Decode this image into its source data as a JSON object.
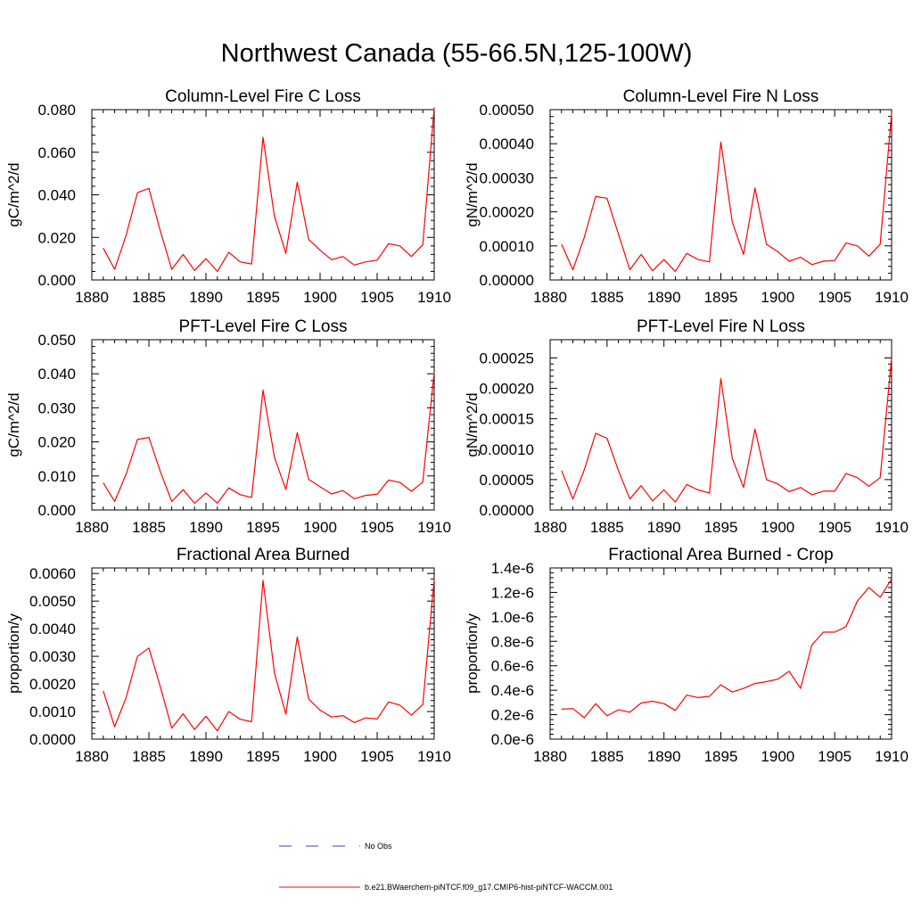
{
  "main_title": "Northwest Canada (55-66.5N,125-100W)",
  "colors": {
    "model_line": "#ff0000",
    "obs_line": "#3344aa",
    "axis": "#000000"
  },
  "legend": {
    "entries": [
      {
        "label": "No Obs",
        "style": "dashed",
        "color": "#3344aa"
      },
      {
        "label": "b.e21.BWaerchem-piNTCF.f09_g17.CMIP6-hist-piNTCF-WACCM.001",
        "style": "solid",
        "color": "#ff0000"
      }
    ]
  },
  "chart_data": [
    {
      "type": "line",
      "title": "Column-Level Fire C Loss",
      "ylabel": "gC/m^2/d",
      "xlim": [
        1880,
        1910
      ],
      "ylim": [
        0,
        0.08
      ],
      "xticks": [
        1880,
        1885,
        1890,
        1895,
        1900,
        1905,
        1910
      ],
      "yticks": [
        0,
        0.02,
        0.04,
        0.06,
        0.08
      ],
      "ytick_labels": [
        "0.000",
        "0.020",
        "0.040",
        "0.060",
        "0.080"
      ],
      "x": [
        1881,
        1882,
        1883,
        1884,
        1885,
        1886,
        1887,
        1888,
        1889,
        1890,
        1891,
        1892,
        1893,
        1894,
        1895,
        1896,
        1897,
        1898,
        1899,
        1900,
        1901,
        1902,
        1903,
        1904,
        1905,
        1906,
        1907,
        1908,
        1909,
        1910
      ],
      "series": [
        {
          "name": "b.e21.BWaerchem-piNTCF.f09_g17.CMIP6-hist-piNTCF-WACCM.001",
          "values": [
            0.015,
            0.005,
            0.021,
            0.041,
            0.043,
            0.023,
            0.005,
            0.012,
            0.0045,
            0.01,
            0.004,
            0.013,
            0.0085,
            0.0075,
            0.067,
            0.03,
            0.0125,
            0.046,
            0.019,
            0.014,
            0.0095,
            0.011,
            0.007,
            0.0085,
            0.0093,
            0.017,
            0.016,
            0.011,
            0.0165,
            0.081
          ]
        }
      ]
    },
    {
      "type": "line",
      "title": "Column-Level Fire N Loss",
      "ylabel": "gN/m^2/d",
      "xlim": [
        1880,
        1910
      ],
      "ylim": [
        0,
        0.0005
      ],
      "xticks": [
        1880,
        1885,
        1890,
        1895,
        1900,
        1905,
        1910
      ],
      "yticks": [
        0,
        0.0001,
        0.0002,
        0.0003,
        0.0004,
        0.0005
      ],
      "ytick_labels": [
        "0.00000",
        "0.00010",
        "0.00020",
        "0.00030",
        "0.00040",
        "0.00050"
      ],
      "x": [
        1881,
        1882,
        1883,
        1884,
        1885,
        1886,
        1887,
        1888,
        1889,
        1890,
        1891,
        1892,
        1893,
        1894,
        1895,
        1896,
        1897,
        1898,
        1899,
        1900,
        1901,
        1902,
        1903,
        1904,
        1905,
        1906,
        1907,
        1908,
        1909,
        1910
      ],
      "series": [
        {
          "name": "b.e21.BWaerchem-piNTCF.f09_g17.CMIP6-hist-piNTCF-WACCM.001",
          "values": [
            0.000105,
            3e-05,
            0.000125,
            0.000245,
            0.00024,
            0.000135,
            3e-05,
            7.5e-05,
            2.7e-05,
            6e-05,
            2.5e-05,
            7.8e-05,
            6e-05,
            5.3e-05,
            0.000405,
            0.00017,
            7.5e-05,
            0.00027,
            0.000105,
            8.3e-05,
            5.5e-05,
            6.7e-05,
            4.5e-05,
            5.5e-05,
            5.7e-05,
            0.000109,
            0.0001,
            7e-05,
            0.000105,
            0.00049
          ]
        }
      ]
    },
    {
      "type": "line",
      "title": "PFT-Level Fire C Loss",
      "ylabel": "gC/m^2/d",
      "xlim": [
        1880,
        1910
      ],
      "ylim": [
        0,
        0.05
      ],
      "xticks": [
        1880,
        1885,
        1890,
        1895,
        1900,
        1905,
        1910
      ],
      "yticks": [
        0,
        0.01,
        0.02,
        0.03,
        0.04,
        0.05
      ],
      "ytick_labels": [
        "0.000",
        "0.010",
        "0.020",
        "0.030",
        "0.040",
        "0.050"
      ],
      "x": [
        1881,
        1882,
        1883,
        1884,
        1885,
        1886,
        1887,
        1888,
        1889,
        1890,
        1891,
        1892,
        1893,
        1894,
        1895,
        1896,
        1897,
        1898,
        1899,
        1900,
        1901,
        1902,
        1903,
        1904,
        1905,
        1906,
        1907,
        1908,
        1909,
        1910
      ],
      "series": [
        {
          "name": "b.e21.BWaerchem-piNTCF.f09_g17.CMIP6-hist-piNTCF-WACCM.001",
          "values": [
            0.008,
            0.0025,
            0.0105,
            0.0207,
            0.0213,
            0.0113,
            0.0025,
            0.006,
            0.002,
            0.005,
            0.002,
            0.0065,
            0.0045,
            0.0037,
            0.0352,
            0.0155,
            0.006,
            0.0227,
            0.009,
            0.0068,
            0.0047,
            0.0057,
            0.0033,
            0.0043,
            0.0046,
            0.0088,
            0.0081,
            0.0055,
            0.0082,
            0.0405
          ]
        }
      ]
    },
    {
      "type": "line",
      "title": "PFT-Level Fire N Loss",
      "ylabel": "gN/m^2/d",
      "xlim": [
        1880,
        1910
      ],
      "ylim": [
        0,
        0.00028
      ],
      "xticks": [
        1880,
        1885,
        1890,
        1895,
        1900,
        1905,
        1910
      ],
      "yticks": [
        0,
        5e-05,
        0.0001,
        0.00015,
        0.0002,
        0.00025
      ],
      "ytick_labels": [
        "0.00000",
        "0.00005",
        "0.00010",
        "0.00015",
        "0.00020",
        "0.00025"
      ],
      "x": [
        1881,
        1882,
        1883,
        1884,
        1885,
        1886,
        1887,
        1888,
        1889,
        1890,
        1891,
        1892,
        1893,
        1894,
        1895,
        1896,
        1897,
        1898,
        1899,
        1900,
        1901,
        1902,
        1903,
        1904,
        1905,
        1906,
        1907,
        1908,
        1909,
        1910
      ],
      "series": [
        {
          "name": "b.e21.BWaerchem-piNTCF.f09_g17.CMIP6-hist-piNTCF-WACCM.001",
          "values": [
            6.5e-05,
            1.8e-05,
            6.6e-05,
            0.000126,
            0.000118,
            6.5e-05,
            1.8e-05,
            4e-05,
            1.5e-05,
            3.3e-05,
            1.3e-05,
            4.2e-05,
            3.3e-05,
            2.8e-05,
            0.000216,
            8.5e-05,
            3.7e-05,
            0.000133,
            5e-05,
            4.3e-05,
            3e-05,
            3.7e-05,
            2.5e-05,
            3.1e-05,
            3.1e-05,
            6e-05,
            5.3e-05,
            3.9e-05,
            5.3e-05,
            0.00025
          ]
        }
      ]
    },
    {
      "type": "line",
      "title": "Fractional Area Burned",
      "ylabel": "proportion/y",
      "xlim": [
        1880,
        1910
      ],
      "ylim": [
        0,
        0.0062
      ],
      "xticks": [
        1880,
        1885,
        1890,
        1895,
        1900,
        1905,
        1910
      ],
      "yticks": [
        0,
        0.001,
        0.002,
        0.003,
        0.004,
        0.005,
        0.006
      ],
      "ytick_labels": [
        "0.0000",
        "0.0010",
        "0.0020",
        "0.0030",
        "0.0040",
        "0.0050",
        "0.0060"
      ],
      "x": [
        1881,
        1882,
        1883,
        1884,
        1885,
        1886,
        1887,
        1888,
        1889,
        1890,
        1891,
        1892,
        1893,
        1894,
        1895,
        1896,
        1897,
        1898,
        1899,
        1900,
        1901,
        1902,
        1903,
        1904,
        1905,
        1906,
        1907,
        1908,
        1909,
        1910
      ],
      "series": [
        {
          "name": "b.e21.BWaerchem-piNTCF.f09_g17.CMIP6-hist-piNTCF-WACCM.001",
          "values": [
            0.00175,
            0.00045,
            0.0015,
            0.003,
            0.0033,
            0.0019,
            0.0004,
            0.00092,
            0.00035,
            0.00083,
            0.0003,
            0.001,
            0.00072,
            0.00063,
            0.00575,
            0.0024,
            0.0009,
            0.0037,
            0.00145,
            0.00105,
            0.0008,
            0.00085,
            0.0006,
            0.00077,
            0.00073,
            0.00135,
            0.00123,
            0.00087,
            0.00125,
            0.0058
          ]
        }
      ]
    },
    {
      "type": "line",
      "title": "Fractional Area Burned - Crop",
      "ylabel": "proportion/y",
      "xlim": [
        1880,
        1910
      ],
      "ylim": [
        0,
        1.4e-06
      ],
      "xticks": [
        1880,
        1885,
        1890,
        1895,
        1900,
        1905,
        1910
      ],
      "yticks": [
        0,
        2e-07,
        4e-07,
        6e-07,
        8e-07,
        1e-06,
        1.2e-06,
        1.4e-06
      ],
      "ytick_labels": [
        "0.0e-6",
        "0.2e-6",
        "0.4e-6",
        "0.6e-6",
        "0.8e-6",
        "1.0e-6",
        "1.2e-6",
        "1.4e-6"
      ],
      "x": [
        1881,
        1882,
        1883,
        1884,
        1885,
        1886,
        1887,
        1888,
        1889,
        1890,
        1891,
        1892,
        1893,
        1894,
        1895,
        1896,
        1897,
        1898,
        1899,
        1900,
        1901,
        1902,
        1903,
        1904,
        1905,
        1906,
        1907,
        1908,
        1909,
        1910
      ],
      "series": [
        {
          "name": "b.e21.BWaerchem-piNTCF.f09_g17.CMIP6-hist-piNTCF-WACCM.001",
          "values": [
            2.45e-07,
            2.5e-07,
            1.75e-07,
            2.9e-07,
            1.9e-07,
            2.4e-07,
            2.2e-07,
            2.95e-07,
            3.1e-07,
            2.9e-07,
            2.35e-07,
            3.6e-07,
            3.4e-07,
            3.5e-07,
            4.45e-07,
            3.85e-07,
            4.15e-07,
            4.55e-07,
            4.7e-07,
            4.9e-07,
            5.55e-07,
            4.15e-07,
            7.7e-07,
            8.75e-07,
            8.75e-07,
            9.2e-07,
            1.13e-06,
            1.24e-06,
            1.16e-06,
            1.31e-06
          ]
        }
      ]
    }
  ]
}
